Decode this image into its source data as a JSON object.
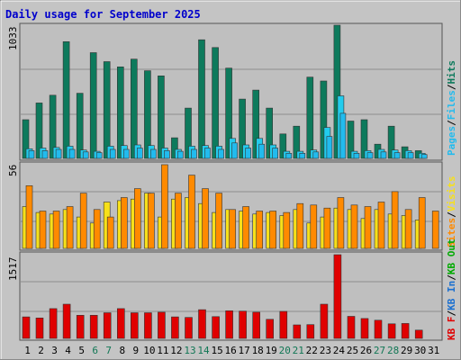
{
  "title": "Daily usage for September 2025",
  "colors": {
    "background": "#c4c4c4",
    "plot_bg": "#bfbfbf",
    "title": "#0000cc",
    "hits": "#0d7a5c",
    "files": "#22ccee",
    "pages": "#22bbee",
    "visits": "#f7e01a",
    "sites": "#ff8a00",
    "kb_out": "#00aa00",
    "kb_in": "#1a6fd0",
    "kb_f": "#e00000",
    "weekend_day": "#117755",
    "weekday": "#000000"
  },
  "chart_data": [
    {
      "type": "bar",
      "panel": "hits-files-pages",
      "y_max_label": "1033",
      "categories": [
        "1",
        "2",
        "3",
        "4",
        "5",
        "6",
        "7",
        "8",
        "9",
        "10",
        "11",
        "12",
        "13",
        "14",
        "15",
        "16",
        "17",
        "18",
        "19",
        "20",
        "21",
        "22",
        "23",
        "24",
        "25",
        "26",
        "27",
        "28",
        "29",
        "30",
        "31"
      ],
      "weekend_days": [
        "6",
        "7",
        "13",
        "14",
        "20",
        "21",
        "27",
        "28"
      ],
      "series": [
        {
          "name": "Hits",
          "color_key": "hits",
          "values": [
            300,
            430,
            490,
            905,
            505,
            820,
            750,
            710,
            770,
            680,
            640,
            160,
            390,
            920,
            860,
            700,
            460,
            530,
            390,
            190,
            250,
            630,
            600,
            1033,
            290,
            300,
            110,
            250,
            90,
            60,
            0
          ]
        },
        {
          "name": "Files",
          "color_key": "files",
          "values": [
            75,
            80,
            85,
            95,
            65,
            55,
            95,
            100,
            105,
            100,
            80,
            70,
            95,
            100,
            95,
            155,
            105,
            155,
            105,
            55,
            55,
            65,
            240,
            485,
            55,
            60,
            70,
            65,
            60,
            40,
            0
          ]
        },
        {
          "name": "Pages",
          "color_key": "pages",
          "values": [
            60,
            60,
            70,
            70,
            50,
            45,
            70,
            70,
            80,
            70,
            60,
            55,
            70,
            80,
            70,
            120,
            80,
            110,
            80,
            40,
            40,
            50,
            170,
            350,
            40,
            45,
            50,
            45,
            45,
            30,
            0
          ]
        }
      ],
      "legend": [
        "Pages",
        "Files",
        "Hits"
      ]
    },
    {
      "type": "bar",
      "panel": "visits-sites",
      "y_max_label": "56",
      "categories": [
        "1",
        "2",
        "3",
        "4",
        "5",
        "6",
        "7",
        "8",
        "9",
        "10",
        "11",
        "12",
        "13",
        "14",
        "15",
        "16",
        "17",
        "18",
        "19",
        "20",
        "21",
        "22",
        "23",
        "24",
        "25",
        "26",
        "27",
        "28",
        "29",
        "30",
        "31"
      ],
      "series": [
        {
          "name": "Visits",
          "color_key": "visits",
          "values": [
            28,
            24,
            23,
            26,
            21,
            17,
            31,
            32,
            33,
            37,
            21,
            33,
            34,
            30,
            24,
            26,
            25,
            23,
            24,
            22,
            26,
            17,
            21,
            27,
            26,
            20,
            26,
            23,
            22,
            19,
            0
          ]
        },
        {
          "name": "Sites",
          "color_key": "sites",
          "values": [
            42,
            25,
            25,
            28,
            37,
            26,
            21,
            34,
            40,
            37,
            56,
            37,
            49,
            40,
            37,
            26,
            28,
            25,
            25,
            24,
            30,
            29,
            27,
            34,
            29,
            28,
            31,
            38,
            26,
            34,
            25
          ]
        }
      ],
      "legend": [
        "Sites",
        "Visits"
      ]
    },
    {
      "type": "bar",
      "panel": "kbytes",
      "y_max_label": "1517",
      "categories": [
        "1",
        "2",
        "3",
        "4",
        "5",
        "6",
        "7",
        "8",
        "9",
        "10",
        "11",
        "12",
        "13",
        "14",
        "15",
        "16",
        "17",
        "18",
        "19",
        "20",
        "21",
        "22",
        "23",
        "24",
        "25",
        "26",
        "27",
        "28",
        "29",
        "30",
        "31"
      ],
      "series": [
        {
          "name": "KB F",
          "color_key": "kb_f",
          "values": [
            390,
            370,
            540,
            620,
            420,
            420,
            465,
            540,
            465,
            465,
            475,
            390,
            380,
            520,
            395,
            500,
            495,
            475,
            345,
            490,
            245,
            250,
            620,
            1517,
            400,
            360,
            330,
            265,
            270,
            150,
            0
          ]
        }
      ],
      "legend": [
        "KB F",
        "KB In",
        "KB Out"
      ]
    }
  ],
  "x_labels": [
    "1",
    "2",
    "3",
    "4",
    "5",
    "6",
    "7",
    "8",
    "9",
    "10",
    "11",
    "12",
    "13",
    "14",
    "15",
    "16",
    "17",
    "18",
    "19",
    "20",
    "21",
    "22",
    "23",
    "24",
    "25",
    "26",
    "27",
    "28",
    "29",
    "30",
    "31"
  ],
  "legend_text": {
    "top": [
      "Pages",
      "/",
      "Files",
      "/",
      "Hits"
    ],
    "middle": [
      "Sites",
      "/",
      "Visits"
    ],
    "bottom": [
      "KB F",
      "/",
      "KB In",
      "/",
      "KB Out"
    ]
  }
}
